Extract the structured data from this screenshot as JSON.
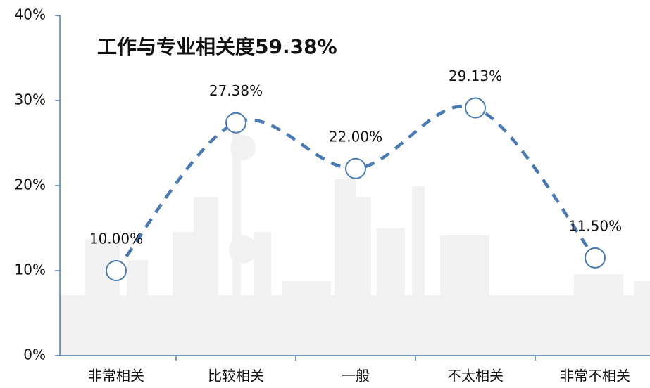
{
  "chart_data": {
    "type": "line",
    "title": "工作与专业相关度59.38%",
    "categories": [
      "非常相关",
      "比较相关",
      "一般",
      "不太相关",
      "非常不相关"
    ],
    "values": [
      10,
      27.38,
      22,
      29.13,
      11.5
    ],
    "value_labels": [
      "10.00%",
      "27.38%",
      "22.00%",
      "29.13%",
      "11.50%"
    ],
    "color": "#4a7ab5",
    "ylim": [
      0,
      40
    ],
    "yticks": [
      {
        "value": 0,
        "label": "0%"
      },
      {
        "value": 10,
        "label": "10%"
      },
      {
        "value": 20,
        "label": "20%"
      },
      {
        "value": 30,
        "label": "30%"
      },
      {
        "value": 40,
        "label": "40%"
      }
    ]
  }
}
